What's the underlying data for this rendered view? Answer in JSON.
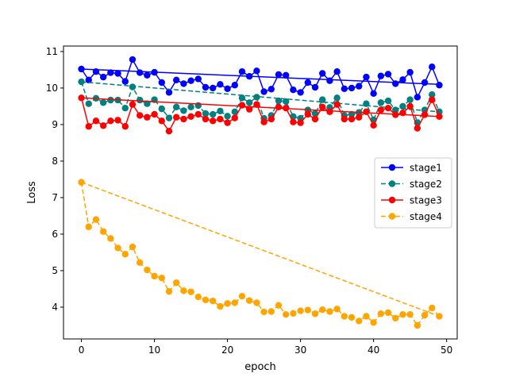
{
  "chart_data": {
    "type": "line",
    "title": "",
    "xlabel": "epoch",
    "ylabel": "Loss",
    "xlim": [
      -2.45,
      51.45
    ],
    "ylim": [
      3.13,
      11.15
    ],
    "x_ticks": [
      0,
      10,
      20,
      30,
      40,
      50
    ],
    "y_ticks": [
      4,
      5,
      6,
      7,
      8,
      9,
      10,
      11
    ],
    "grid": false,
    "legend_position": "center-right",
    "x": [
      0,
      1,
      2,
      3,
      4,
      5,
      6,
      7,
      8,
      9,
      10,
      11,
      12,
      13,
      14,
      15,
      16,
      17,
      18,
      19,
      20,
      21,
      22,
      23,
      24,
      25,
      26,
      27,
      28,
      29,
      30,
      31,
      32,
      33,
      34,
      35,
      36,
      37,
      38,
      39,
      40,
      41,
      42,
      43,
      44,
      45,
      46,
      47,
      48,
      49
    ],
    "series": [
      {
        "name": "stage1",
        "color": "#0000ff",
        "linestyle": "solid",
        "values": [
          10.52,
          10.22,
          10.45,
          10.3,
          10.42,
          10.4,
          10.18,
          10.78,
          10.42,
          10.35,
          10.43,
          10.15,
          9.88,
          10.22,
          10.12,
          10.2,
          10.25,
          10.02,
          10.0,
          10.1,
          9.98,
          10.08,
          10.45,
          10.32,
          10.47,
          9.9,
          9.97,
          10.37,
          10.35,
          9.95,
          9.88,
          10.15,
          10.02,
          10.4,
          10.2,
          10.45,
          9.98,
          10.0,
          10.05,
          10.3,
          9.85,
          10.33,
          10.38,
          10.12,
          10.23,
          10.43,
          9.75,
          10.15,
          10.58,
          10.08
        ],
        "trend": [
          10.52,
          10.1
        ]
      },
      {
        "name": "stage2",
        "color": "#008080",
        "linestyle": "dashed",
        "values": [
          10.17,
          9.57,
          9.72,
          9.6,
          9.67,
          9.67,
          9.45,
          10.03,
          9.67,
          9.57,
          9.68,
          9.43,
          9.18,
          9.48,
          9.38,
          9.48,
          9.52,
          9.3,
          9.28,
          9.37,
          9.23,
          9.35,
          9.73,
          9.6,
          9.75,
          9.17,
          9.25,
          9.65,
          9.63,
          9.22,
          9.17,
          9.4,
          9.3,
          9.68,
          9.47,
          9.73,
          9.25,
          9.28,
          9.33,
          9.57,
          9.13,
          9.6,
          9.65,
          9.4,
          9.5,
          9.68,
          9.05,
          9.4,
          9.82,
          9.35
        ],
        "trend": [
          10.17,
          9.35
        ]
      },
      {
        "name": "stage3",
        "color": "#ff0000",
        "linestyle": "solid",
        "values": [
          9.73,
          8.95,
          9.1,
          8.97,
          9.1,
          9.12,
          8.95,
          9.55,
          9.25,
          9.2,
          9.28,
          9.1,
          8.82,
          9.2,
          9.15,
          9.22,
          9.28,
          9.15,
          9.1,
          9.15,
          9.05,
          9.18,
          9.53,
          9.42,
          9.55,
          9.07,
          9.15,
          9.48,
          9.45,
          9.07,
          9.05,
          9.28,
          9.15,
          9.48,
          9.35,
          9.55,
          9.15,
          9.15,
          9.2,
          9.35,
          8.98,
          9.4,
          9.45,
          9.27,
          9.32,
          9.5,
          8.9,
          9.27,
          9.68,
          9.22
        ],
        "trend": [
          9.73,
          9.22
        ]
      },
      {
        "name": "stage4",
        "color": "#ffa500",
        "linestyle": "dashed",
        "values": [
          7.42,
          6.2,
          6.4,
          6.07,
          5.88,
          5.62,
          5.45,
          5.65,
          5.22,
          5.02,
          4.85,
          4.8,
          4.43,
          4.67,
          4.45,
          4.42,
          4.28,
          4.2,
          4.17,
          4.02,
          4.1,
          4.12,
          4.3,
          4.18,
          4.12,
          3.87,
          3.88,
          4.05,
          3.8,
          3.83,
          3.9,
          3.92,
          3.82,
          3.93,
          3.88,
          3.95,
          3.75,
          3.72,
          3.62,
          3.75,
          3.58,
          3.82,
          3.85,
          3.7,
          3.8,
          3.8,
          3.5,
          3.78,
          3.98,
          3.75
        ],
        "trend": [
          7.42,
          3.75
        ]
      }
    ]
  }
}
